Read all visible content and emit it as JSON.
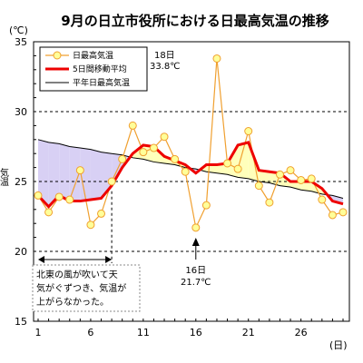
{
  "chart_data": {
    "type": "line",
    "title": "9月の日立市役所における日最高気温の推移",
    "y_unit_label": "(℃)",
    "ylabel": "気温",
    "x_unit_label": "(日)",
    "x_ticks": [
      1,
      6,
      11,
      16,
      21,
      26
    ],
    "y_ticks": [
      15,
      20,
      25,
      30,
      35
    ],
    "xlim": [
      1,
      30
    ],
    "ylim": [
      15,
      35
    ],
    "grid_y_dashed": [
      20,
      25,
      30
    ],
    "legend": {
      "placement": "top-left",
      "entries": [
        "日最高気温",
        "5日間移動平均",
        "平年日最高気温"
      ]
    },
    "x": [
      1,
      2,
      3,
      4,
      5,
      6,
      7,
      8,
      9,
      10,
      11,
      12,
      13,
      14,
      15,
      16,
      17,
      18,
      19,
      20,
      21,
      22,
      23,
      24,
      25,
      26,
      27,
      28,
      29,
      30
    ],
    "series": [
      {
        "name": "日最高気温",
        "color": "#f0a030",
        "marker_fill": "#ffff99",
        "values": [
          24.0,
          22.8,
          23.9,
          23.7,
          25.8,
          21.9,
          22.7,
          25.0,
          26.6,
          29.0,
          27.1,
          27.4,
          28.2,
          26.6,
          25.7,
          21.7,
          23.3,
          33.8,
          26.3,
          25.9,
          28.6,
          24.7,
          23.5,
          25.5,
          25.8,
          25.1,
          25.2,
          23.7,
          22.6,
          22.8
        ]
      },
      {
        "name": "5日間移動平均",
        "color": "#ee0000",
        "values": [
          24.0,
          23.2,
          24.0,
          23.6,
          23.6,
          23.7,
          23.8,
          24.7,
          26.0,
          27.0,
          27.6,
          27.5,
          26.8,
          26.5,
          26.2,
          25.6,
          26.2,
          26.2,
          26.3,
          27.6,
          27.8,
          25.8,
          25.7,
          25.6,
          25.0,
          25.0,
          25.0,
          24.5,
          23.6,
          23.4
        ]
      },
      {
        "name": "平年日最高気温",
        "color": "#000000",
        "values": [
          28.0,
          27.8,
          27.7,
          27.5,
          27.4,
          27.3,
          27.1,
          27.0,
          26.9,
          26.7,
          26.6,
          26.4,
          26.3,
          26.2,
          26.0,
          25.9,
          25.7,
          25.6,
          25.5,
          25.3,
          25.2,
          25.0,
          24.9,
          24.7,
          24.6,
          24.4,
          24.3,
          24.1,
          24.0,
          23.8
        ]
      }
    ],
    "annotations": [
      {
        "day_label": "18日",
        "value_label": "33.8℃",
        "x": 18,
        "y": 33.8
      },
      {
        "day_label": "16日",
        "value_label": "21.7℃",
        "x": 16,
        "y": 21.7
      }
    ],
    "note": {
      "text_lines": [
        "北東の風が吹いて天",
        "気がぐずつき、気温が",
        "上がらなかった。"
      ],
      "x_range": [
        1,
        8
      ]
    },
    "fill_colors": {
      "below_normal": "#d8d0f4",
      "above_normal": "#ffffbb"
    }
  }
}
